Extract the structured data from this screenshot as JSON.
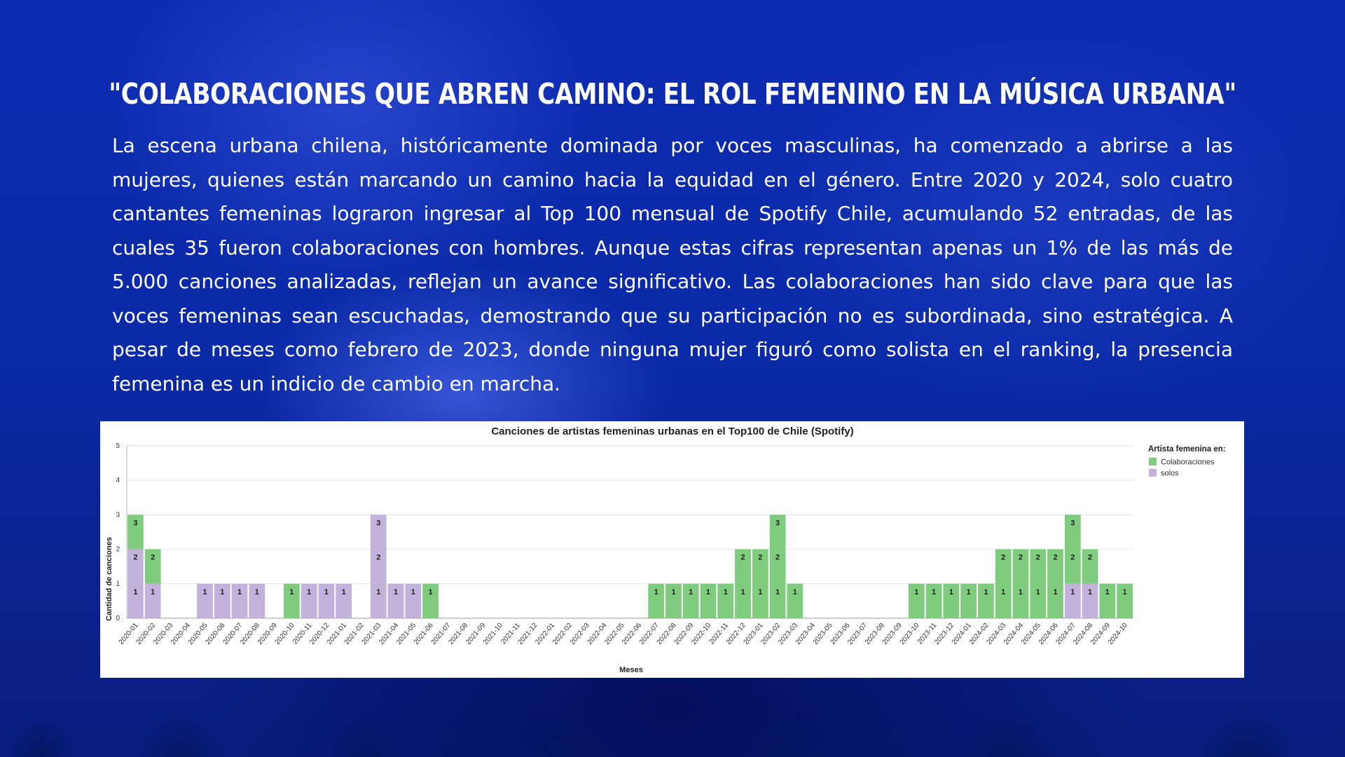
{
  "title": "\"Colaboraciones que abren camino: el rol femenino en la música urbana\"",
  "paragraph": "La escena urbana chilena, históricamente dominada por voces masculinas, ha comenzado a abrirse a las mujeres, quienes están marcando un camino hacia la equidad en el género. Entre 2020 y 2024, solo cuatro cantantes femeninas lograron ingresar al Top 100 mensual de Spotify Chile, acumulando 52 entradas, de las cuales 35 fueron colaboraciones con hombres. Aunque estas cifras representan apenas un 1% de las más de 5.000 canciones analizadas, reflejan un avance significativo. Las colaboraciones han sido clave para que las voces femeninas sean escuchadas, demostrando que su participación no es subordinada, sino estratégica. A pesar de meses como febrero de 2023, donde ninguna mujer figuró como solista en el ranking, la presencia femenina es un indicio de cambio en marcha.",
  "colors": {
    "background": "#0a2aa8",
    "colaboraciones": "#7fcc7f",
    "solos": "#c3b3dc"
  },
  "chart_data": {
    "type": "bar",
    "stacked": true,
    "title": "Canciones de artistas femeninas urbanas en el Top100 de Chile (Spotify)",
    "xlabel": "Meses",
    "ylabel": "Cantidad de canciones",
    "ylim": [
      0,
      5
    ],
    "yticks": [
      "0",
      "1",
      "2",
      "3",
      "4",
      "5"
    ],
    "grid": true,
    "legend_title": "Artista femenina en:",
    "legend_position": "right",
    "categories": [
      "2020-01",
      "2020-02",
      "2020-03",
      "2020-04",
      "2020-05",
      "2020-06",
      "2020-07",
      "2020-08",
      "2020-09",
      "2020-10",
      "2020-11",
      "2020-12",
      "2021-01",
      "2021-02",
      "2021-03",
      "2021-04",
      "2021-05",
      "2021-06",
      "2021-07",
      "2021-08",
      "2021-09",
      "2021-10",
      "2021-11",
      "2021-12",
      "2022-01",
      "2022-02",
      "2022-03",
      "2022-04",
      "2022-05",
      "2022-06",
      "2022-07",
      "2022-08",
      "2022-09",
      "2022-10",
      "2022-11",
      "2022-12",
      "2023-01",
      "2023-02",
      "2023-03",
      "2023-04",
      "2023-05",
      "2023-06",
      "2023-07",
      "2023-08",
      "2023-09",
      "2023-10",
      "2023-11",
      "2023-12",
      "2024-01",
      "2024-02",
      "2024-03",
      "2024-04",
      "2024-05",
      "2024-06",
      "2024-07",
      "2024-08",
      "2024-09",
      "2024-10"
    ],
    "series": [
      {
        "name": "solos",
        "values": [
          2,
          1,
          0,
          0,
          1,
          1,
          1,
          1,
          0,
          0,
          1,
          1,
          1,
          0,
          3,
          1,
          1,
          0,
          0,
          0,
          0,
          0,
          0,
          0,
          0,
          0,
          0,
          0,
          0,
          0,
          0,
          0,
          0,
          0,
          0,
          0,
          0,
          0,
          0,
          0,
          0,
          0,
          0,
          0,
          0,
          0,
          0,
          0,
          0,
          0,
          0,
          0,
          0,
          0,
          1,
          1,
          0,
          0
        ]
      },
      {
        "name": "Colaboraciones",
        "values": [
          1,
          1,
          0,
          0,
          0,
          0,
          0,
          0,
          0,
          1,
          0,
          0,
          0,
          0,
          0,
          0,
          0,
          1,
          0,
          0,
          0,
          0,
          0,
          0,
          0,
          0,
          0,
          0,
          0,
          0,
          1,
          1,
          1,
          1,
          1,
          2,
          2,
          3,
          1,
          0,
          0,
          0,
          0,
          0,
          0,
          1,
          1,
          1,
          1,
          1,
          2,
          2,
          2,
          2,
          2,
          1,
          1,
          1
        ]
      }
    ],
    "legend_order": [
      "Colaboraciones",
      "solos"
    ]
  }
}
